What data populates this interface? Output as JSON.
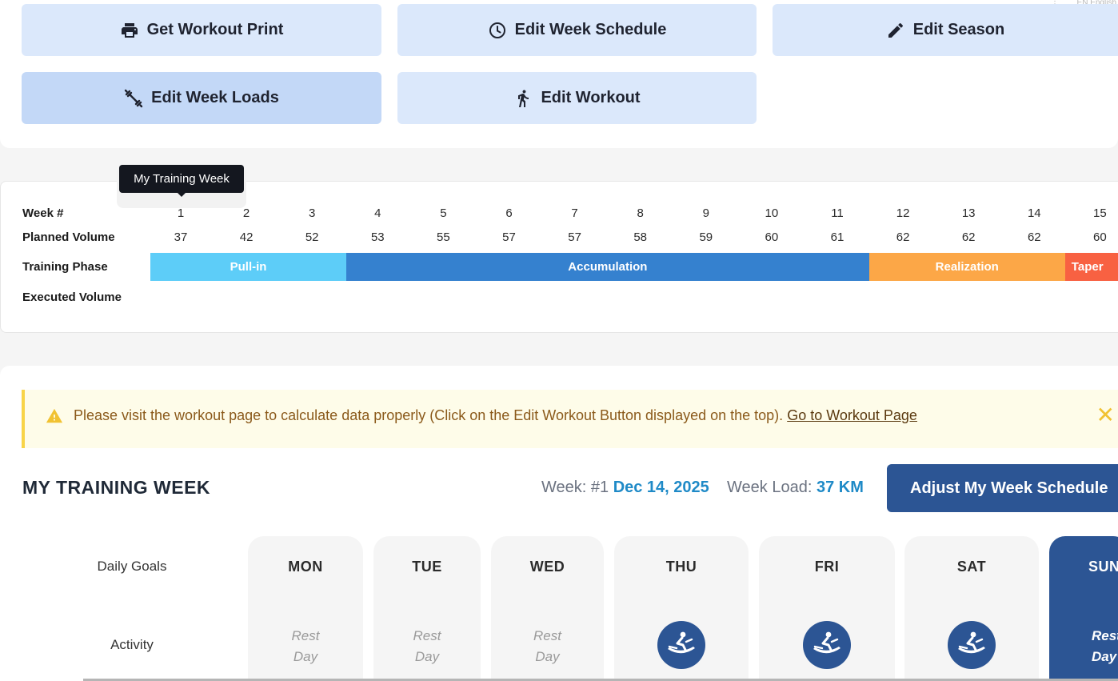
{
  "toolbar": {
    "buttons": [
      {
        "label": "Get Workout Print",
        "icon": "printer-icon"
      },
      {
        "label": "Edit Week Schedule",
        "icon": "clock-icon"
      },
      {
        "label": "Edit Season",
        "icon": "pencil-icon"
      },
      {
        "label": "Edit Week Loads",
        "icon": "dumbbell-icon"
      },
      {
        "label": "Edit Workout",
        "icon": "running-icon"
      }
    ],
    "language": "EN English"
  },
  "overview": {
    "tooltip": "My Training Week",
    "labels": {
      "week": "Week #",
      "planned": "Planned Volume",
      "phase": "Training Phase",
      "executed": "Executed Volume"
    },
    "weeks": [
      "1",
      "2",
      "3",
      "4",
      "5",
      "6",
      "7",
      "8",
      "9",
      "10",
      "11",
      "12",
      "13",
      "14",
      "15"
    ],
    "planned_volume": [
      "37",
      "42",
      "52",
      "53",
      "55",
      "57",
      "57",
      "58",
      "59",
      "60",
      "61",
      "62",
      "62",
      "62",
      "60"
    ],
    "phases": [
      {
        "name": "Pull-in",
        "color": "#5dcdf8",
        "weeks": 3
      },
      {
        "name": "Accumulation",
        "color": "#3581cf",
        "weeks": 8
      },
      {
        "name": "Realization",
        "color": "#fca747",
        "weeks": 3
      },
      {
        "name": "Taper",
        "color": "#f86142",
        "weeks": 1
      }
    ]
  },
  "alert": {
    "text": "Please visit the workout page to calculate data properly (Click on the Edit Workout Button displayed on the top).",
    "link": "Go to Workout Page",
    "close": "✕"
  },
  "training_week": {
    "title": "MY TRAINING WEEK",
    "week_label": "Week: #1",
    "week_date": "Dec 14, 2025",
    "load_label": "Week Load:",
    "load_value": "37 KM",
    "adjust_button": "Adjust My Week Schedule",
    "row_labels": {
      "goals": "Daily Goals",
      "activity": "Activity"
    },
    "days": [
      {
        "name": "MON",
        "activity": "rest",
        "rest_text": "Rest\nDay"
      },
      {
        "name": "TUE",
        "activity": "rest",
        "rest_text": "Rest\nDay"
      },
      {
        "name": "WED",
        "activity": "rest",
        "rest_text": "Rest\nDay"
      },
      {
        "name": "THU",
        "activity": "rowing",
        "icon": "rowing-icon"
      },
      {
        "name": "FRI",
        "activity": "rowing",
        "icon": "rowing-icon"
      },
      {
        "name": "SAT",
        "activity": "rowing",
        "icon": "rowing-icon"
      },
      {
        "name": "SUN",
        "activity": "rest",
        "rest_text": "Rest\nDay"
      }
    ]
  }
}
